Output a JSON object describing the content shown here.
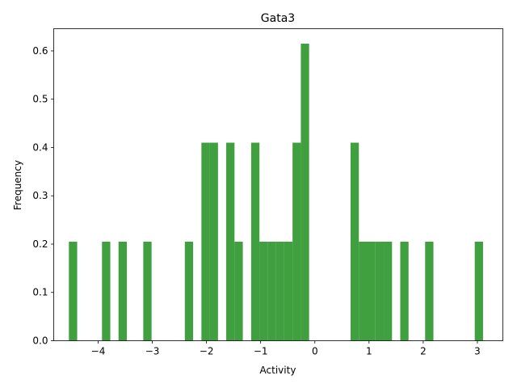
{
  "chart_data": {
    "type": "bar",
    "title": "Gata3",
    "xlabel": "Activity",
    "ylabel": "Frequency",
    "xlim": [
      -4.82,
      3.47
    ],
    "ylim": [
      0,
      0.646
    ],
    "xticks": [
      -4,
      -3,
      -2,
      -1,
      0,
      1,
      2,
      3
    ],
    "xtick_labels": [
      "−4",
      "−3",
      "−2",
      "−1",
      "0",
      "1",
      "2",
      "3"
    ],
    "yticks": [
      0.0,
      0.1,
      0.2,
      0.3,
      0.4,
      0.5,
      0.6
    ],
    "ytick_labels": [
      "0.0",
      "0.1",
      "0.2",
      "0.3",
      "0.4",
      "0.5",
      "0.6"
    ],
    "bar_color": "#40a040",
    "bin_width": 0.1531,
    "bins": [
      {
        "x0": -4.54,
        "value": 0.205
      },
      {
        "x0": -3.929,
        "value": 0.205
      },
      {
        "x0": -3.624,
        "value": 0.205
      },
      {
        "x0": -3.167,
        "value": 0.205
      },
      {
        "x0": -2.4,
        "value": 0.205
      },
      {
        "x0": -2.094,
        "value": 0.41
      },
      {
        "x0": -1.941,
        "value": 0.41
      },
      {
        "x0": -1.636,
        "value": 0.41
      },
      {
        "x0": -1.483,
        "value": 0.205
      },
      {
        "x0": -1.176,
        "value": 0.41
      },
      {
        "x0": -1.024,
        "value": 0.205
      },
      {
        "x0": -0.871,
        "value": 0.205
      },
      {
        "x0": -0.718,
        "value": 0.205
      },
      {
        "x0": -0.412,
        "value": 0.41
      },
      {
        "x0": -0.565,
        "value": 0.205
      },
      {
        "x0": -0.259,
        "value": 0.615
      },
      {
        "x0": 0.659,
        "value": 0.41
      },
      {
        "x0": 0.812,
        "value": 0.205
      },
      {
        "x0": 0.965,
        "value": 0.205
      },
      {
        "x0": 1.118,
        "value": 0.205
      },
      {
        "x0": 1.271,
        "value": 0.205
      },
      {
        "x0": 1.576,
        "value": 0.205
      },
      {
        "x0": 2.035,
        "value": 0.205
      },
      {
        "x0": 2.951,
        "value": 0.205
      }
    ]
  }
}
